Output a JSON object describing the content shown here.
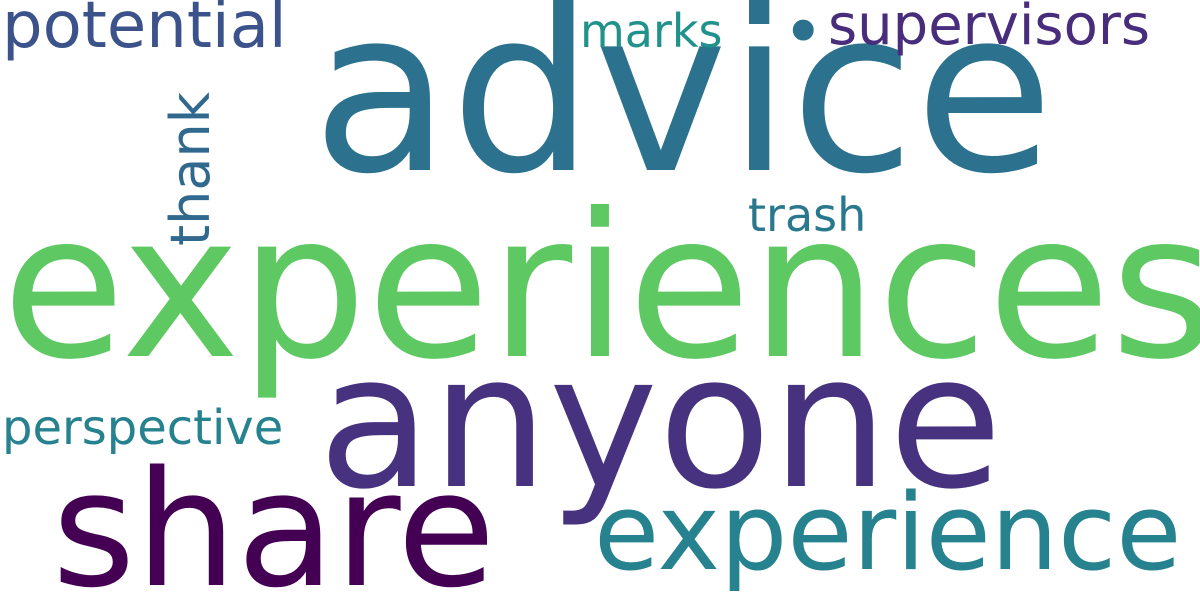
{
  "words": [
    {
      "text": "advice",
      "color": "#2c728e"
    },
    {
      "text": "experiences",
      "color": "#5ec962"
    },
    {
      "text": "anyone",
      "color": "#46327e"
    },
    {
      "text": "share",
      "color": "#440154"
    },
    {
      "text": "experience",
      "color": "#26828e"
    },
    {
      "text": "potential",
      "color": "#3b528b"
    },
    {
      "text": "supervisors",
      "color": "#472d7b"
    },
    {
      "text": "marks",
      "color": "#21918c"
    },
    {
      "text": "thank",
      "color": "#31688e"
    },
    {
      "text": "trash",
      "color": "#2a788e"
    },
    {
      "text": "perspective",
      "color": "#26828e"
    },
    {
      "text": "•",
      "color": "#2c728e"
    }
  ]
}
